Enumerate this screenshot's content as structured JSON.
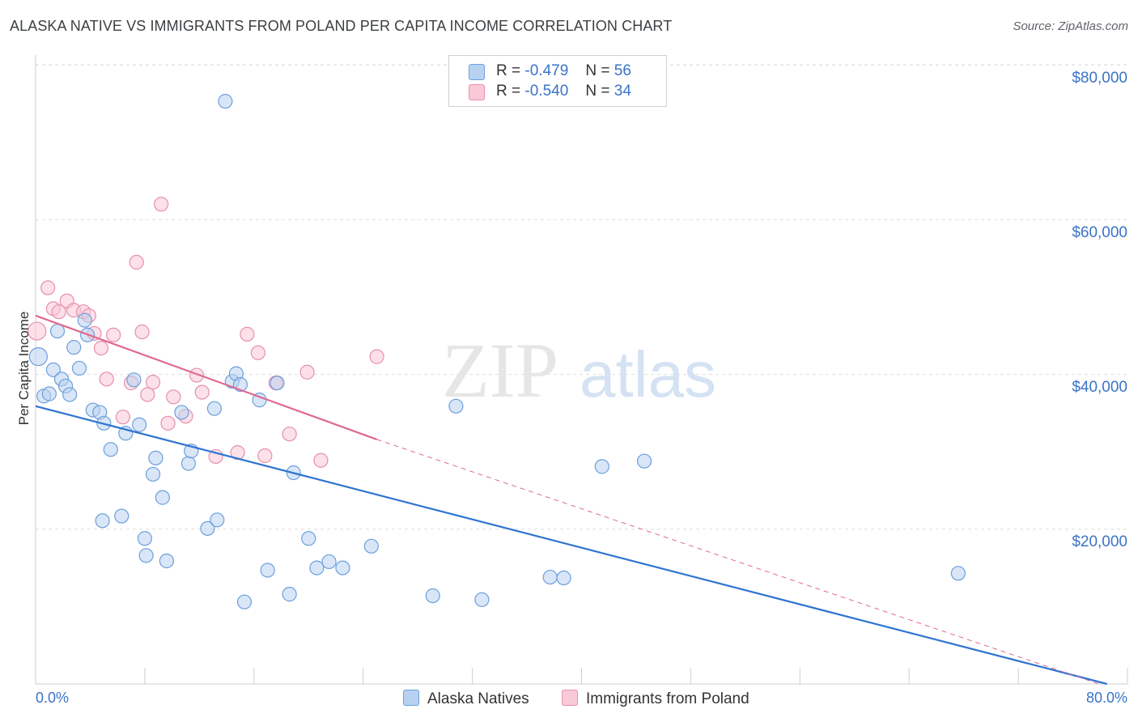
{
  "title": "ALASKA NATIVE VS IMMIGRANTS FROM POLAND PER CAPITA INCOME CORRELATION CHART",
  "source": "Source: ZipAtlas.com",
  "watermark": {
    "zip": "ZIP",
    "atlas": "atlas"
  },
  "colors": {
    "blue_fill": "#b9d1f1",
    "blue_stroke": "#6c9fdc",
    "blue_line": "#2f74d0",
    "pink_fill": "#f9c9d7",
    "pink_stroke": "#e88fab",
    "pink_line": "#e0698f",
    "tick_text": "#3a73c9",
    "grid": "#dddddd"
  },
  "legend": {
    "rows": [
      {
        "r_label": "R =",
        "r_value": "-0.479",
        "n_label": "N =",
        "n_value": "56"
      },
      {
        "r_label": "R =",
        "r_value": "-0.540",
        "n_label": "N =",
        "n_value": "34"
      }
    ]
  },
  "bottom_legend": [
    "Alaska Natives",
    "Immigrants from Poland"
  ],
  "chart_data": {
    "type": "scatter",
    "title": "ALASKA NATIVE VS IMMIGRANTS FROM POLAND PER CAPITA INCOME CORRELATION CHART",
    "xlabel": "",
    "ylabel": "Per Capita Income",
    "xlim": [
      0,
      80
    ],
    "ylim": [
      0,
      80000
    ],
    "x_tick_labels": [
      "0.0%",
      "80.0%"
    ],
    "y_tick_labels": [
      "$20,000",
      "$40,000",
      "$60,000",
      "$80,000"
    ],
    "y_ticks": [
      20000,
      40000,
      60000,
      80000
    ],
    "grid": true,
    "legend_position": "top-center",
    "series": [
      {
        "name": "Alaska Natives",
        "r": -0.479,
        "n": 56,
        "trend": {
          "x": [
            0,
            78.5
          ],
          "y": [
            35900,
            0
          ]
        },
        "points": [
          [
            0.2,
            42300
          ],
          [
            0.6,
            37200
          ],
          [
            1.0,
            37500
          ],
          [
            1.3,
            40600
          ],
          [
            1.6,
            45600
          ],
          [
            1.9,
            39400
          ],
          [
            2.2,
            38500
          ],
          [
            2.5,
            37400
          ],
          [
            2.8,
            43500
          ],
          [
            3.2,
            40800
          ],
          [
            3.6,
            47000
          ],
          [
            3.8,
            45100
          ],
          [
            4.2,
            35400
          ],
          [
            4.7,
            35100
          ],
          [
            5.0,
            33700
          ],
          [
            5.5,
            30300
          ],
          [
            4.9,
            21100
          ],
          [
            6.3,
            21700
          ],
          [
            6.6,
            32400
          ],
          [
            7.2,
            39300
          ],
          [
            7.6,
            33500
          ],
          [
            8.0,
            18800
          ],
          [
            8.1,
            16600
          ],
          [
            8.6,
            27100
          ],
          [
            8.8,
            29200
          ],
          [
            9.3,
            24100
          ],
          [
            9.6,
            15900
          ],
          [
            10.7,
            35100
          ],
          [
            11.2,
            28500
          ],
          [
            11.4,
            30100
          ],
          [
            12.6,
            20100
          ],
          [
            13.1,
            35600
          ],
          [
            13.3,
            21200
          ],
          [
            13.9,
            75300
          ],
          [
            14.4,
            39100
          ],
          [
            14.7,
            40100
          ],
          [
            15.0,
            38700
          ],
          [
            15.3,
            10600
          ],
          [
            16.4,
            36700
          ],
          [
            17.0,
            14700
          ],
          [
            17.7,
            38900
          ],
          [
            18.6,
            11600
          ],
          [
            18.9,
            27300
          ],
          [
            20.0,
            18800
          ],
          [
            20.6,
            15000
          ],
          [
            21.5,
            15800
          ],
          [
            22.5,
            15000
          ],
          [
            24.6,
            17800
          ],
          [
            29.1,
            11400
          ],
          [
            30.8,
            35900
          ],
          [
            32.7,
            10900
          ],
          [
            37.7,
            13800
          ],
          [
            38.7,
            13700
          ],
          [
            41.5,
            28100
          ],
          [
            44.6,
            28800
          ],
          [
            67.6,
            14300
          ]
        ]
      },
      {
        "name": "Immigrants from Poland",
        "r": -0.54,
        "n": 34,
        "trend": {
          "x": [
            0,
            25.0
          ],
          "y": [
            47600,
            31600
          ]
        },
        "trend_extension": {
          "x": [
            25.0,
            78.5
          ],
          "y": [
            31600,
            -2600
          ]
        },
        "points": [
          [
            0.1,
            45600
          ],
          [
            0.9,
            51200
          ],
          [
            1.3,
            48500
          ],
          [
            1.7,
            48100
          ],
          [
            2.3,
            49500
          ],
          [
            2.8,
            48300
          ],
          [
            3.5,
            48100
          ],
          [
            3.9,
            47600
          ],
          [
            4.3,
            45300
          ],
          [
            4.8,
            43400
          ],
          [
            5.2,
            39400
          ],
          [
            5.7,
            45100
          ],
          [
            6.4,
            34500
          ],
          [
            7.0,
            38900
          ],
          [
            7.4,
            54500
          ],
          [
            7.8,
            45500
          ],
          [
            8.2,
            37400
          ],
          [
            8.6,
            39000
          ],
          [
            9.7,
            33700
          ],
          [
            10.1,
            37100
          ],
          [
            11.0,
            34600
          ],
          [
            11.8,
            39900
          ],
          [
            12.2,
            37700
          ],
          [
            9.2,
            62000
          ],
          [
            13.2,
            29400
          ],
          [
            14.8,
            29900
          ],
          [
            15.5,
            45200
          ],
          [
            16.3,
            42800
          ],
          [
            16.8,
            29500
          ],
          [
            17.6,
            38900
          ],
          [
            18.6,
            32300
          ],
          [
            19.9,
            40300
          ],
          [
            20.9,
            28900
          ],
          [
            25.0,
            42300
          ]
        ]
      }
    ]
  }
}
